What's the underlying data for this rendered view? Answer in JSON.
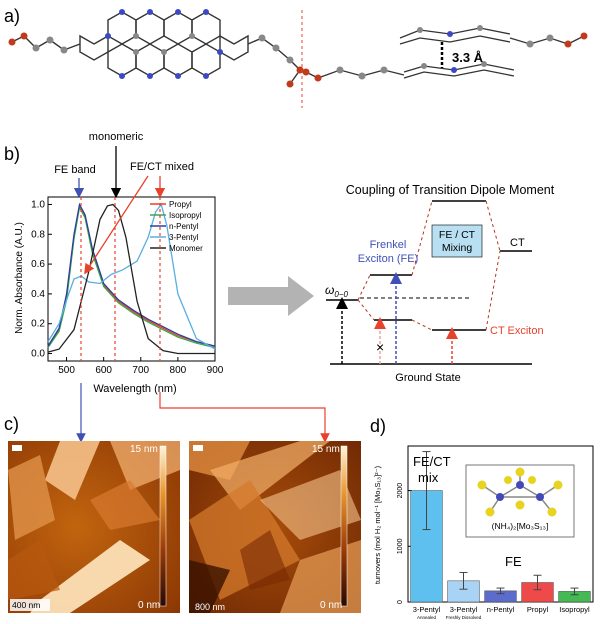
{
  "panels": {
    "a": "a)",
    "b": "b)",
    "c": "c)",
    "d": "d)"
  },
  "panel_a": {
    "stacking_distance": "3.3 Å"
  },
  "panel_b": {
    "annotations": {
      "monomeric": "monomeric",
      "fe_band": "FE band",
      "fe_ct_mixed": "FE/CT mixed"
    },
    "energy_diagram": {
      "title": "Coupling of Transition Dipole Moment",
      "frenkel_line1": "Frenkel",
      "frenkel_line2": "Exciton (FE)",
      "mixing_line1": "FE / CT",
      "mixing_line2": "Mixing",
      "ct": "CT",
      "ct_exciton": "CT Exciton",
      "ground_state": "Ground State",
      "omega": "ω",
      "omega_sub": "0−0",
      "cross": "×"
    }
  },
  "chart_data": [
    {
      "type": "line",
      "xlabel": "Wavelength (nm)",
      "ylabel": "Norm. Absorbance (A.U.)",
      "xlim": [
        450,
        900
      ],
      "ylim": [
        -0.05,
        1.05
      ],
      "xticks": [
        "500",
        "600",
        "700",
        "800",
        "900"
      ],
      "yticks": [
        "0.0",
        "0.2",
        "0.4",
        "0.6",
        "0.8",
        "1.0"
      ],
      "legend_position": "top-right",
      "series": [
        {
          "name": "Propyl",
          "color": "#e8412c",
          "x": [
            450,
            480,
            500,
            520,
            535,
            550,
            570,
            600,
            640,
            680,
            720,
            760,
            800,
            850,
            900
          ],
          "y": [
            0.05,
            0.16,
            0.38,
            0.78,
            0.99,
            0.92,
            0.68,
            0.46,
            0.35,
            0.28,
            0.22,
            0.17,
            0.12,
            0.08,
            0.05
          ]
        },
        {
          "name": "Isopropyl",
          "color": "#3aa84a",
          "x": [
            450,
            480,
            500,
            520,
            535,
            550,
            570,
            600,
            640,
            680,
            720,
            760,
            800,
            850,
            900
          ],
          "y": [
            0.04,
            0.15,
            0.36,
            0.77,
            0.98,
            0.91,
            0.67,
            0.45,
            0.34,
            0.27,
            0.21,
            0.16,
            0.11,
            0.07,
            0.04
          ]
        },
        {
          "name": "n-Pentyl",
          "color": "#2c3e9e",
          "x": [
            450,
            480,
            500,
            520,
            535,
            550,
            570,
            600,
            640,
            680,
            720,
            760,
            800,
            850,
            900
          ],
          "y": [
            0.05,
            0.17,
            0.4,
            0.8,
            1.0,
            0.93,
            0.7,
            0.47,
            0.36,
            0.29,
            0.23,
            0.18,
            0.13,
            0.08,
            0.05
          ]
        },
        {
          "name": "3-Pentyl",
          "color": "#5aaee0",
          "x": [
            450,
            480,
            500,
            520,
            540,
            560,
            590,
            620,
            650,
            690,
            720,
            740,
            755,
            770,
            800,
            850,
            900
          ],
          "y": [
            0.08,
            0.2,
            0.36,
            0.5,
            0.52,
            0.48,
            0.47,
            0.53,
            0.56,
            0.62,
            0.78,
            0.95,
            1.0,
            0.86,
            0.4,
            0.1,
            0.03
          ]
        },
        {
          "name": "Monomer",
          "color": "#222222",
          "x": [
            450,
            480,
            520,
            560,
            590,
            610,
            625,
            640,
            660,
            690,
            720,
            760,
            800,
            900
          ],
          "y": [
            0.01,
            0.03,
            0.16,
            0.55,
            0.9,
            0.99,
            1.0,
            0.96,
            0.78,
            0.35,
            0.1,
            0.02,
            0.0,
            0.0
          ]
        }
      ]
    },
    {
      "type": "bar",
      "ylabel": "turnovers (mol H₂ mol⁻¹ [Mo₃S₁₃]²⁻)",
      "ylim": [
        0,
        2800
      ],
      "yticks": [
        "0",
        "1000",
        "2000"
      ],
      "categories": [
        "3-Pentyl",
        "3-Pentyl",
        "n-Pentyl",
        "Propyl",
        "Isopropyl"
      ],
      "category_sublabels": [
        "Annealed",
        "Freshly Dissolved",
        "",
        "",
        ""
      ],
      "values": [
        2000,
        380,
        200,
        350,
        190
      ],
      "errors": [
        700,
        150,
        50,
        130,
        60
      ],
      "colors": [
        "#5ec0ee",
        "#a9d3f5",
        "#5c6ccc",
        "#ef4a4a",
        "#44b954"
      ],
      "annotations": {
        "fe_ct_line1": "FE/CT",
        "fe_ct_line2": "mix",
        "fe": "FE"
      },
      "inset_label": "(NH₄)₂[Mo₃S₁₃]"
    }
  ],
  "panel_c": {
    "images": [
      {
        "scale_bar": "400 nm",
        "z_max": "15 nm",
        "z_min": "0 nm"
      },
      {
        "scale_bar": "800 nm",
        "z_max": "15 nm",
        "z_min": "0 nm"
      }
    ]
  }
}
